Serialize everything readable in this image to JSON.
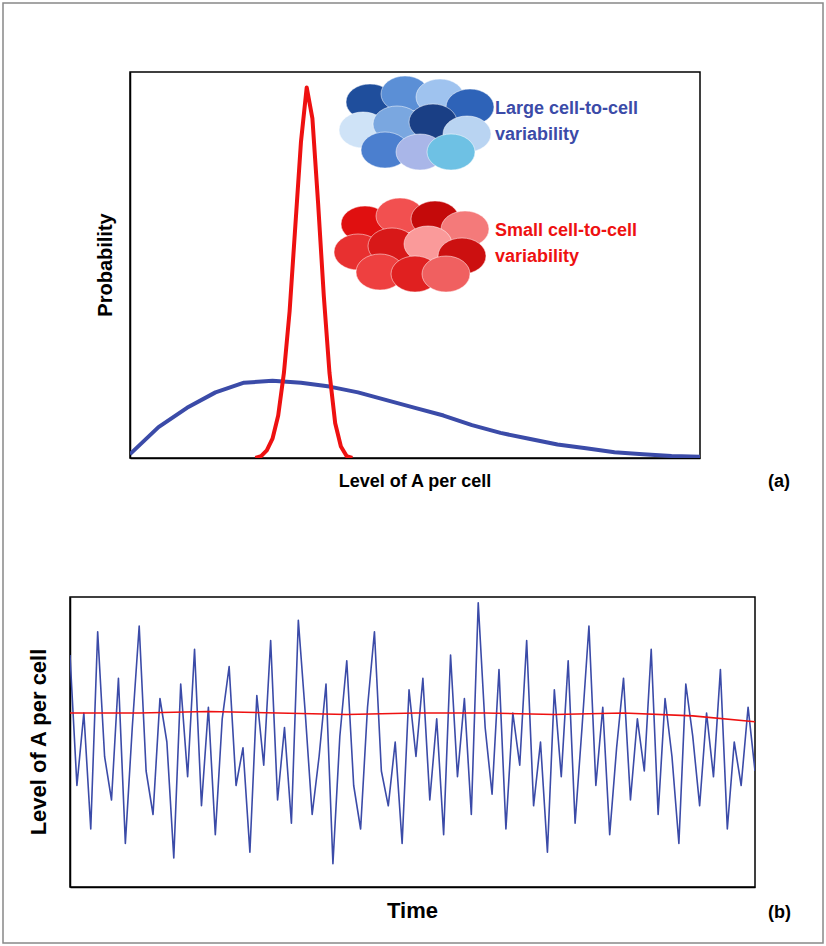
{
  "chart_data": [
    {
      "type": "line",
      "panel_label": "(a)",
      "x_label": "Level of A per cell",
      "y_label": "Probability",
      "xlim": [
        0,
        100
      ],
      "ylim": [
        0,
        100
      ],
      "tick_labels": false,
      "grid": false,
      "legend": "top-right",
      "series": [
        {
          "name": "Large cell-to-cell variability",
          "color": "#3b4ba8",
          "x": [
            0,
            5,
            10,
            15,
            20,
            25,
            30,
            35,
            40,
            45,
            50,
            55,
            60,
            65,
            70,
            75,
            80,
            85,
            90,
            95,
            100
          ],
          "values": [
            1,
            8,
            13,
            17,
            19.5,
            20,
            19.5,
            18.5,
            17,
            15,
            13,
            11,
            8.5,
            6.5,
            5,
            3.5,
            2.5,
            1.5,
            1,
            0.5,
            0.3
          ]
        },
        {
          "name": "Small cell-to-cell variability",
          "color": "#ee1111",
          "x": [
            22,
            23,
            24,
            25,
            26,
            27,
            28,
            29,
            30,
            31,
            32,
            33,
            34,
            35,
            36,
            37,
            38,
            39
          ],
          "values": [
            0,
            0.5,
            2,
            5,
            11,
            22,
            38,
            60,
            82,
            96,
            88,
            66,
            42,
            22,
            9,
            3,
            0.5,
            0
          ]
        }
      ]
    },
    {
      "type": "line",
      "panel_label": "(b)",
      "x_label": "Time",
      "y_label": "Level of A per cell",
      "xlim": [
        0,
        99
      ],
      "ylim": [
        0,
        100
      ],
      "tick_labels": false,
      "grid": false,
      "series": [
        {
          "color": "#3b4ba8",
          "x": [
            0,
            1,
            2,
            3,
            4,
            5,
            6,
            7,
            8,
            9,
            10,
            11,
            12,
            13,
            14,
            15,
            16,
            17,
            18,
            19,
            20,
            21,
            22,
            23,
            24,
            25,
            26,
            27,
            28,
            29,
            30,
            31,
            32,
            33,
            34,
            35,
            36,
            37,
            38,
            39,
            40,
            41,
            42,
            43,
            44,
            45,
            46,
            47,
            48,
            49,
            50,
            51,
            52,
            53,
            54,
            55,
            56,
            57,
            58,
            59,
            60,
            61,
            62,
            63,
            64,
            65,
            66,
            67,
            68,
            69,
            70,
            71,
            72,
            73,
            74,
            75,
            76,
            77,
            78,
            79,
            80,
            81,
            82,
            83,
            84,
            85,
            86,
            87,
            88,
            89,
            90,
            91,
            92,
            93,
            94,
            95,
            96,
            97,
            98,
            99
          ],
          "values": [
            80,
            35,
            60,
            20,
            88,
            45,
            30,
            72,
            15,
            55,
            90,
            40,
            25,
            65,
            50,
            10,
            70,
            38,
            82,
            28,
            62,
            18,
            58,
            76,
            35,
            48,
            12,
            66,
            42,
            85,
            30,
            55,
            22,
            92,
            60,
            25,
            45,
            70,
            8,
            52,
            78,
            35,
            20,
            62,
            88,
            40,
            28,
            50,
            15,
            68,
            45,
            72,
            30,
            58,
            18,
            80,
            38,
            65,
            25,
            98,
            55,
            32,
            75,
            20,
            60,
            42,
            85,
            28,
            50,
            12,
            68,
            38,
            78,
            22,
            55,
            90,
            35,
            62,
            18,
            48,
            72,
            30,
            58,
            40,
            82,
            25,
            65,
            45,
            15,
            70,
            52,
            28,
            60,
            38,
            75,
            20,
            50,
            35,
            62,
            40
          ]
        },
        {
          "color": "#ee1111",
          "x": [
            0,
            10,
            20,
            30,
            40,
            50,
            60,
            70,
            80,
            90,
            99
          ],
          "values": [
            60,
            60,
            60.5,
            60,
            59.5,
            60,
            60,
            59.5,
            60,
            59,
            57
          ]
        }
      ]
    }
  ]
}
